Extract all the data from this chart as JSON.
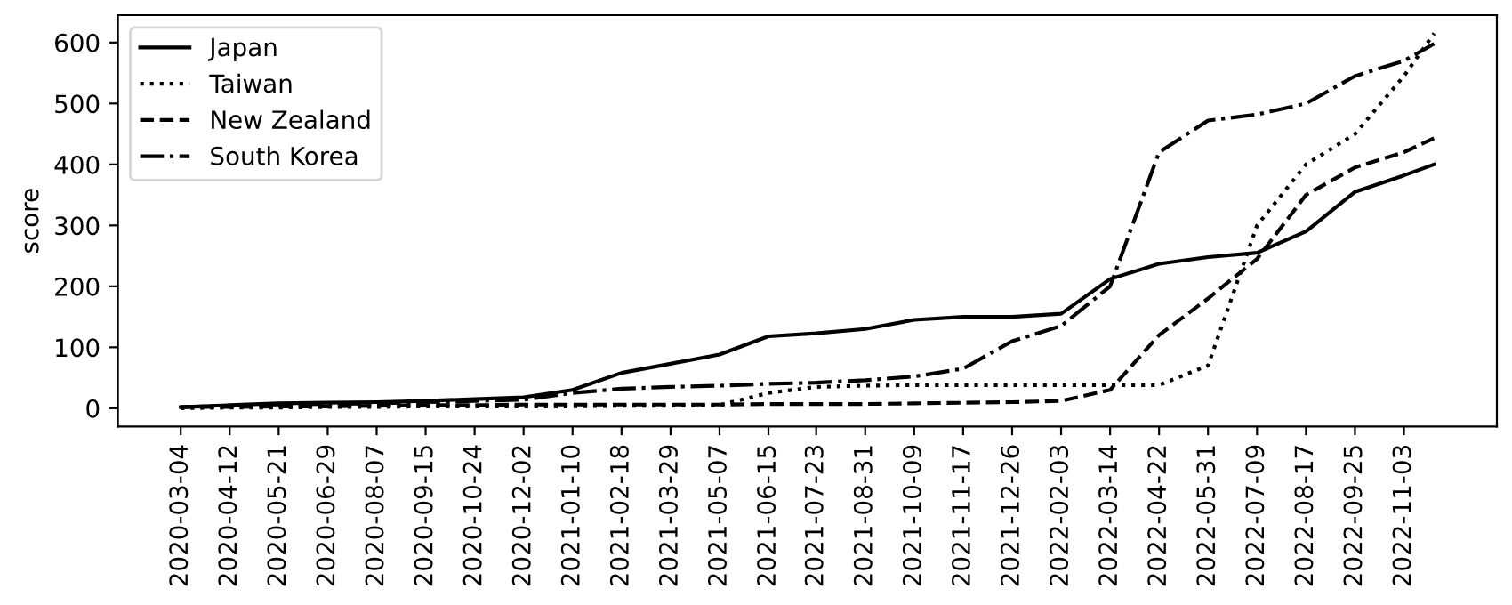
{
  "chart_data": {
    "type": "line",
    "ylabel": "score",
    "x": [
      "2020-03-04",
      "2020-04-12",
      "2020-05-21",
      "2020-06-29",
      "2020-08-07",
      "2020-09-15",
      "2020-10-24",
      "2020-12-02",
      "2021-01-10",
      "2021-02-18",
      "2021-03-29",
      "2021-05-07",
      "2021-06-15",
      "2021-07-23",
      "2021-08-31",
      "2021-10-09",
      "2021-11-17",
      "2021-12-26",
      "2022-02-03",
      "2022-03-14",
      "2022-04-22",
      "2022-05-31",
      "2022-07-09",
      "2022-08-17",
      "2022-09-25",
      "2022-11-03",
      "2022-11-27"
    ],
    "series": [
      {
        "name": "Japan",
        "color": "#000000",
        "line_style": "solid",
        "values": [
          2,
          5,
          8,
          9,
          10,
          12,
          15,
          18,
          30,
          58,
          73,
          88,
          118,
          123,
          130,
          145,
          150,
          150,
          155,
          212,
          237,
          248,
          255,
          290,
          355,
          382,
          400
        ]
      },
      {
        "name": "Taiwan",
        "color": "#000000",
        "line_style": "dotted",
        "values": [
          0,
          1,
          1,
          2,
          2,
          3,
          3,
          3,
          3,
          4,
          4,
          5,
          25,
          35,
          37,
          38,
          38,
          38,
          38,
          38,
          38,
          70,
          300,
          400,
          450,
          545,
          615
        ]
      },
      {
        "name": "New Zealand",
        "color": "#000000",
        "line_style": "dashed",
        "values": [
          2,
          2,
          3,
          3,
          4,
          5,
          5,
          6,
          6,
          6,
          6,
          6,
          7,
          7,
          7,
          8,
          9,
          10,
          12,
          30,
          120,
          180,
          245,
          350,
          395,
          420,
          443
        ]
      },
      {
        "name": "South Korea",
        "color": "#000000",
        "line_style": "dashdot",
        "values": [
          2,
          4,
          6,
          7,
          8,
          10,
          12,
          14,
          25,
          32,
          35,
          37,
          40,
          42,
          46,
          52,
          65,
          110,
          135,
          200,
          420,
          472,
          482,
          500,
          545,
          570,
          598
        ]
      }
    ],
    "xlim": [
      "2020-01-14",
      "2023-01-16"
    ],
    "xticks": [
      "2020-03-04",
      "2020-04-12",
      "2020-05-21",
      "2020-06-29",
      "2020-08-07",
      "2020-09-15",
      "2020-10-24",
      "2020-12-02",
      "2021-01-10",
      "2021-02-18",
      "2021-03-29",
      "2021-05-07",
      "2021-06-15",
      "2021-07-23",
      "2021-08-31",
      "2021-10-09",
      "2021-11-17",
      "2021-12-26",
      "2022-02-03",
      "2022-03-14",
      "2022-04-22",
      "2022-05-31",
      "2022-07-09",
      "2022-08-17",
      "2022-09-25",
      "2022-11-03"
    ],
    "ylim": [
      -30,
      645
    ],
    "yticks": [
      0,
      100,
      200,
      300,
      400,
      500,
      600
    ],
    "legend": "top left",
    "grid": false
  }
}
